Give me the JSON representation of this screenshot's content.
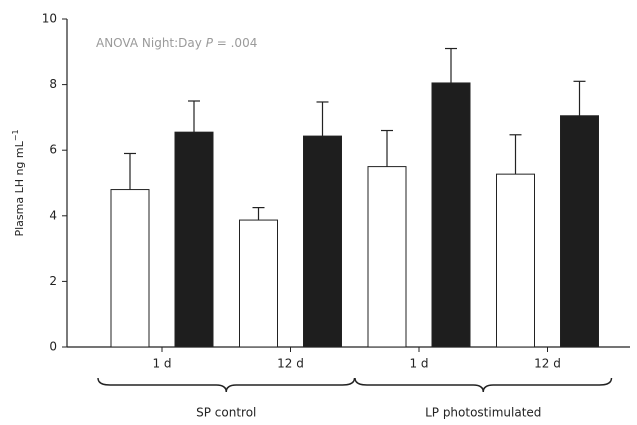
{
  "chart_data": {
    "type": "bar",
    "annotation": [
      "ANOVA Night:Day ",
      "P",
      " = .004"
    ],
    "ylabel": [
      "Plasma LH ng mL",
      "−1"
    ],
    "categories": [
      "1 d",
      "12 d",
      "1 d",
      "12 d"
    ],
    "groups": [
      {
        "label": "SP control",
        "span": [
          0,
          1
        ]
      },
      {
        "label": "LP photostimulated",
        "span": [
          2,
          3
        ]
      }
    ],
    "series": [
      {
        "color": "#ffffff",
        "values": [
          4.8,
          3.87,
          5.5,
          5.27
        ],
        "errors": [
          1.1,
          0.38,
          1.1,
          1.2
        ]
      },
      {
        "color": "#1e1e1e",
        "values": [
          6.55,
          6.43,
          8.05,
          7.05
        ],
        "errors": [
          0.95,
          1.04,
          1.05,
          1.05
        ]
      }
    ],
    "ylim": [
      0,
      10
    ],
    "yticks": [
      0,
      2,
      4,
      6,
      8,
      10
    ]
  }
}
